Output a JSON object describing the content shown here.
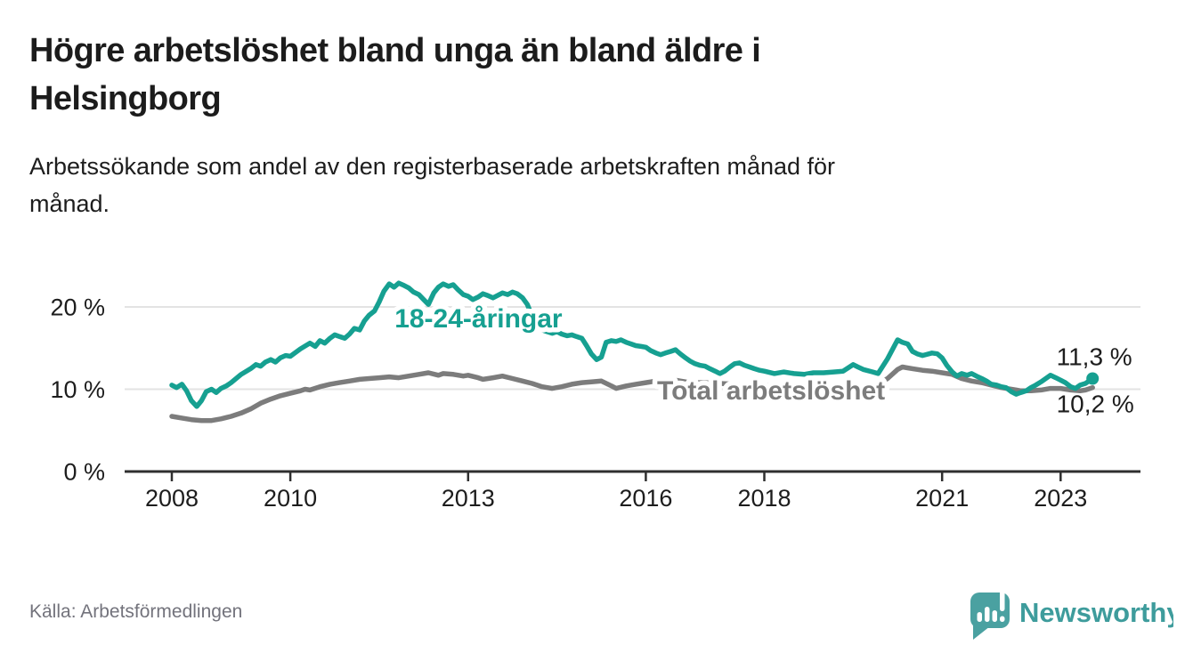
{
  "header": {
    "title_line1": "Högre arbetslöshet bland unga än bland äldre i",
    "title_line2": "Helsingborg",
    "subtitle_line1": "Arbetssökande som andel av den registerbaserade arbetskraften månad för",
    "subtitle_line2": "månad."
  },
  "footer": {
    "source": "Källa: Arbetsförmedlingen",
    "logo_text": "Newsworthy"
  },
  "colors": {
    "accent_teal": "#16a091",
    "line_gray": "#7c7c7c",
    "grid": "#e3e3e3",
    "axis": "#2f2f2f",
    "text_dark": "#1d1d1d",
    "muted_text": "#73737c",
    "logo_mark": "#4aa1a1",
    "logo_text": "#3e9c9c",
    "background": "#ffffff"
  },
  "chart_data": {
    "type": "line",
    "title": "Högre arbetslöshet bland unga än bland äldre i Helsingborg",
    "subtitle": "Arbetssökande som andel av den registerbaserade arbetskraften månad för månad.",
    "source": "Källa: Arbetsförmedlingen",
    "unit": "%",
    "grid": true,
    "legend_position": "inline-labels",
    "x_axis": {
      "ticks": [
        {
          "year": 2008,
          "label": "2008"
        },
        {
          "year": 2010,
          "label": "2010"
        },
        {
          "year": 2013,
          "label": "2013"
        },
        {
          "year": 2016,
          "label": "2016"
        },
        {
          "year": 2018,
          "label": "2018"
        },
        {
          "year": 2021,
          "label": "2021"
        },
        {
          "year": 2023,
          "label": "2023"
        }
      ],
      "range": [
        2007.2,
        2024.35
      ]
    },
    "y_axis": {
      "ticks": [
        {
          "value": 0,
          "label": "0 %"
        },
        {
          "value": 10,
          "label": "10 %"
        },
        {
          "value": 20,
          "label": "20 %"
        }
      ],
      "range": [
        0,
        26.5
      ]
    },
    "series": [
      {
        "id": "youth",
        "name": "18-24-åringar",
        "color": "#16a091",
        "end_dot": true,
        "inline_label": {
          "text": "18-24-åringar",
          "x_year": 2011.76,
          "y_value": 17.5
        },
        "end_label": {
          "text": "11,3 %",
          "x_year": 2022.93,
          "y_value": 12.9
        },
        "last_value": "11,3 %",
        "points": [
          [
            2008.0,
            10.5
          ],
          [
            2008.08,
            10.2
          ],
          [
            2008.17,
            10.6
          ],
          [
            2008.25,
            9.8
          ],
          [
            2008.33,
            8.6
          ],
          [
            2008.42,
            7.9
          ],
          [
            2008.5,
            8.6
          ],
          [
            2008.58,
            9.7
          ],
          [
            2008.67,
            10.0
          ],
          [
            2008.75,
            9.6
          ],
          [
            2008.83,
            10.1
          ],
          [
            2008.92,
            10.4
          ],
          [
            2009.0,
            10.8
          ],
          [
            2009.17,
            11.8
          ],
          [
            2009.33,
            12.5
          ],
          [
            2009.42,
            13.0
          ],
          [
            2009.5,
            12.8
          ],
          [
            2009.58,
            13.3
          ],
          [
            2009.67,
            13.6
          ],
          [
            2009.75,
            13.3
          ],
          [
            2009.83,
            13.8
          ],
          [
            2009.92,
            14.1
          ],
          [
            2010.0,
            14.0
          ],
          [
            2010.17,
            14.9
          ],
          [
            2010.33,
            15.6
          ],
          [
            2010.42,
            15.2
          ],
          [
            2010.5,
            15.9
          ],
          [
            2010.58,
            15.6
          ],
          [
            2010.67,
            16.2
          ],
          [
            2010.75,
            16.6
          ],
          [
            2010.83,
            16.4
          ],
          [
            2010.92,
            16.2
          ],
          [
            2011.0,
            16.7
          ],
          [
            2011.08,
            17.4
          ],
          [
            2011.17,
            17.2
          ],
          [
            2011.25,
            18.3
          ],
          [
            2011.33,
            19.0
          ],
          [
            2011.42,
            19.5
          ],
          [
            2011.5,
            20.6
          ],
          [
            2011.58,
            21.9
          ],
          [
            2011.67,
            22.8
          ],
          [
            2011.75,
            22.4
          ],
          [
            2011.83,
            22.9
          ],
          [
            2011.92,
            22.6
          ],
          [
            2012.0,
            22.3
          ],
          [
            2012.08,
            21.8
          ],
          [
            2012.17,
            21.5
          ],
          [
            2012.25,
            20.9
          ],
          [
            2012.33,
            20.3
          ],
          [
            2012.42,
            21.7
          ],
          [
            2012.5,
            22.4
          ],
          [
            2012.58,
            22.8
          ],
          [
            2012.67,
            22.5
          ],
          [
            2012.75,
            22.7
          ],
          [
            2012.83,
            22.1
          ],
          [
            2012.92,
            21.5
          ],
          [
            2013.0,
            21.3
          ],
          [
            2013.08,
            20.9
          ],
          [
            2013.17,
            21.2
          ],
          [
            2013.25,
            21.6
          ],
          [
            2013.33,
            21.4
          ],
          [
            2013.42,
            21.1
          ],
          [
            2013.5,
            21.4
          ],
          [
            2013.58,
            21.7
          ],
          [
            2013.67,
            21.5
          ],
          [
            2013.75,
            21.8
          ],
          [
            2013.83,
            21.6
          ],
          [
            2013.92,
            21.1
          ],
          [
            2014.0,
            20.3
          ],
          [
            2014.08,
            18.9
          ],
          [
            2014.17,
            18.1
          ],
          [
            2014.25,
            17.2
          ],
          [
            2014.33,
            17.0
          ],
          [
            2014.42,
            16.8
          ],
          [
            2014.5,
            17.0
          ],
          [
            2014.58,
            16.7
          ],
          [
            2014.67,
            16.5
          ],
          [
            2014.75,
            16.6
          ],
          [
            2014.83,
            16.4
          ],
          [
            2014.92,
            16.2
          ],
          [
            2015.0,
            15.3
          ],
          [
            2015.08,
            14.3
          ],
          [
            2015.17,
            13.6
          ],
          [
            2015.25,
            13.9
          ],
          [
            2015.33,
            15.7
          ],
          [
            2015.42,
            15.9
          ],
          [
            2015.5,
            15.8
          ],
          [
            2015.58,
            16.0
          ],
          [
            2015.67,
            15.7
          ],
          [
            2015.75,
            15.5
          ],
          [
            2015.83,
            15.3
          ],
          [
            2015.92,
            15.2
          ],
          [
            2016.0,
            15.1
          ],
          [
            2016.08,
            14.7
          ],
          [
            2016.17,
            14.4
          ],
          [
            2016.25,
            14.2
          ],
          [
            2016.33,
            14.4
          ],
          [
            2016.42,
            14.6
          ],
          [
            2016.5,
            14.8
          ],
          [
            2016.58,
            14.3
          ],
          [
            2016.67,
            13.8
          ],
          [
            2016.75,
            13.4
          ],
          [
            2016.83,
            13.1
          ],
          [
            2016.92,
            12.9
          ],
          [
            2017.0,
            12.8
          ],
          [
            2017.08,
            12.5
          ],
          [
            2017.17,
            12.2
          ],
          [
            2017.25,
            11.9
          ],
          [
            2017.33,
            12.2
          ],
          [
            2017.42,
            12.7
          ],
          [
            2017.5,
            13.1
          ],
          [
            2017.58,
            13.2
          ],
          [
            2017.67,
            12.9
          ],
          [
            2017.75,
            12.7
          ],
          [
            2017.83,
            12.5
          ],
          [
            2017.92,
            12.3
          ],
          [
            2018.0,
            12.2
          ],
          [
            2018.17,
            11.9
          ],
          [
            2018.33,
            12.1
          ],
          [
            2018.5,
            11.9
          ],
          [
            2018.67,
            11.8
          ],
          [
            2018.83,
            12.0
          ],
          [
            2019.0,
            12.0
          ],
          [
            2019.17,
            12.1
          ],
          [
            2019.33,
            12.2
          ],
          [
            2019.5,
            13.0
          ],
          [
            2019.58,
            12.7
          ],
          [
            2019.67,
            12.4
          ],
          [
            2019.83,
            12.1
          ],
          [
            2019.92,
            11.9
          ],
          [
            2020.08,
            13.7
          ],
          [
            2020.25,
            16.0
          ],
          [
            2020.33,
            15.7
          ],
          [
            2020.42,
            15.5
          ],
          [
            2020.5,
            14.6
          ],
          [
            2020.58,
            14.3
          ],
          [
            2020.67,
            14.1
          ],
          [
            2020.83,
            14.4
          ],
          [
            2020.92,
            14.3
          ],
          [
            2021.0,
            13.8
          ],
          [
            2021.08,
            12.9
          ],
          [
            2021.17,
            12.1
          ],
          [
            2021.25,
            11.6
          ],
          [
            2021.33,
            11.9
          ],
          [
            2021.42,
            11.7
          ],
          [
            2021.5,
            11.9
          ],
          [
            2021.58,
            11.6
          ],
          [
            2021.67,
            11.3
          ],
          [
            2021.75,
            11.0
          ],
          [
            2021.83,
            10.6
          ],
          [
            2021.92,
            10.5
          ],
          [
            2022.0,
            10.3
          ],
          [
            2022.08,
            10.2
          ],
          [
            2022.17,
            9.7
          ],
          [
            2022.25,
            9.4
          ],
          [
            2022.33,
            9.6
          ],
          [
            2022.42,
            9.8
          ],
          [
            2022.5,
            10.2
          ],
          [
            2022.58,
            10.5
          ],
          [
            2022.67,
            10.9
          ],
          [
            2022.75,
            11.3
          ],
          [
            2022.83,
            11.7
          ],
          [
            2022.92,
            11.4
          ],
          [
            2023.0,
            11.1
          ],
          [
            2023.08,
            10.8
          ],
          [
            2023.17,
            10.3
          ],
          [
            2023.25,
            10.1
          ],
          [
            2023.33,
            10.5
          ],
          [
            2023.42,
            10.7
          ],
          [
            2023.54,
            11.3
          ]
        ]
      },
      {
        "id": "total",
        "name": "Total arbetslöshet",
        "color": "#7c7c7c",
        "end_dot": false,
        "inline_label": {
          "text": "Total arbetslöshet",
          "x_year": 2016.19,
          "y_value": 8.75
        },
        "end_label": {
          "text": "10,2 %",
          "x_year": 2022.93,
          "y_value": 7.2
        },
        "last_value": "10,2 %",
        "points": [
          [
            2008.0,
            6.7
          ],
          [
            2008.17,
            6.5
          ],
          [
            2008.33,
            6.3
          ],
          [
            2008.5,
            6.2
          ],
          [
            2008.67,
            6.2
          ],
          [
            2008.83,
            6.4
          ],
          [
            2009.0,
            6.7
          ],
          [
            2009.17,
            7.1
          ],
          [
            2009.33,
            7.6
          ],
          [
            2009.5,
            8.3
          ],
          [
            2009.67,
            8.8
          ],
          [
            2009.83,
            9.2
          ],
          [
            2010.0,
            9.5
          ],
          [
            2010.17,
            9.8
          ],
          [
            2010.25,
            10.0
          ],
          [
            2010.33,
            9.9
          ],
          [
            2010.5,
            10.3
          ],
          [
            2010.67,
            10.6
          ],
          [
            2010.83,
            10.8
          ],
          [
            2011.0,
            11.0
          ],
          [
            2011.17,
            11.2
          ],
          [
            2011.33,
            11.3
          ],
          [
            2011.5,
            11.4
          ],
          [
            2011.67,
            11.5
          ],
          [
            2011.83,
            11.4
          ],
          [
            2012.0,
            11.6
          ],
          [
            2012.17,
            11.8
          ],
          [
            2012.33,
            12.0
          ],
          [
            2012.5,
            11.7
          ],
          [
            2012.58,
            11.9
          ],
          [
            2012.75,
            11.8
          ],
          [
            2012.92,
            11.6
          ],
          [
            2013.0,
            11.7
          ],
          [
            2013.17,
            11.4
          ],
          [
            2013.25,
            11.2
          ],
          [
            2013.42,
            11.4
          ],
          [
            2013.58,
            11.6
          ],
          [
            2013.75,
            11.3
          ],
          [
            2013.92,
            11.0
          ],
          [
            2014.08,
            10.7
          ],
          [
            2014.25,
            10.3
          ],
          [
            2014.42,
            10.1
          ],
          [
            2014.58,
            10.3
          ],
          [
            2014.75,
            10.6
          ],
          [
            2014.92,
            10.8
          ],
          [
            2015.08,
            10.9
          ],
          [
            2015.25,
            11.0
          ],
          [
            2015.42,
            10.4
          ],
          [
            2015.5,
            10.1
          ],
          [
            2015.67,
            10.4
          ],
          [
            2015.83,
            10.6
          ],
          [
            2016.0,
            10.8
          ],
          [
            2016.17,
            11.0
          ],
          [
            2016.33,
            11.2
          ],
          [
            2016.5,
            11.1
          ],
          [
            2016.67,
            10.9
          ],
          [
            2016.83,
            10.8
          ],
          [
            2017.0,
            10.8
          ],
          [
            2017.25,
            10.7
          ],
          [
            2017.5,
            10.6
          ],
          [
            2017.75,
            10.5
          ],
          [
            2018.0,
            10.5
          ],
          [
            2018.25,
            10.4
          ],
          [
            2018.5,
            10.3
          ],
          [
            2018.75,
            10.3
          ],
          [
            2019.0,
            10.4
          ],
          [
            2019.25,
            10.4
          ],
          [
            2019.5,
            10.3
          ],
          [
            2019.75,
            10.4
          ],
          [
            2019.92,
            10.6
          ],
          [
            2020.08,
            11.3
          ],
          [
            2020.25,
            12.4
          ],
          [
            2020.33,
            12.7
          ],
          [
            2020.5,
            12.5
          ],
          [
            2020.67,
            12.3
          ],
          [
            2020.83,
            12.2
          ],
          [
            2021.0,
            12.0
          ],
          [
            2021.17,
            11.8
          ],
          [
            2021.33,
            11.3
          ],
          [
            2021.5,
            11.0
          ],
          [
            2021.67,
            10.8
          ],
          [
            2021.83,
            10.5
          ],
          [
            2022.0,
            10.2
          ],
          [
            2022.17,
            10.0
          ],
          [
            2022.33,
            9.8
          ],
          [
            2022.5,
            9.8
          ],
          [
            2022.67,
            9.9
          ],
          [
            2022.83,
            10.1
          ],
          [
            2023.0,
            10.1
          ],
          [
            2023.17,
            9.9
          ],
          [
            2023.33,
            9.8
          ],
          [
            2023.42,
            9.9
          ],
          [
            2023.54,
            10.2
          ]
        ]
      }
    ]
  }
}
